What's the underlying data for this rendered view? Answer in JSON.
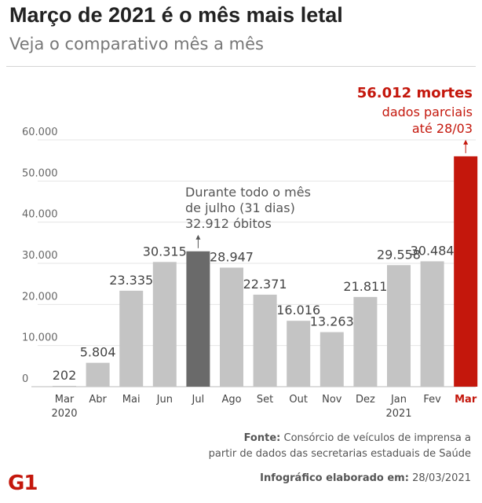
{
  "header": {
    "title": "Março de 2021 é o mês mais letal",
    "subtitle": "Veja o comparativo mês a mês"
  },
  "chart_data": {
    "type": "bar",
    "categories": [
      "Mar",
      "Abr",
      "Mai",
      "Jun",
      "Jul",
      "Ago",
      "Set",
      "Out",
      "Nov",
      "Dez",
      "Jan",
      "Fev",
      "Mar"
    ],
    "category_years": [
      "2020",
      "",
      "",
      "",
      "",
      "",
      "",
      "",
      "",
      "",
      "2021",
      "",
      ""
    ],
    "values": [
      202,
      5804,
      23335,
      30315,
      32912,
      28947,
      22371,
      16016,
      13263,
      21811,
      29558,
      30484,
      56012
    ],
    "value_labels": [
      "202",
      "5.804",
      "23.335",
      "30.315",
      "",
      "28.947",
      "22.371",
      "16.016",
      "13.263",
      "21.811",
      "29.558",
      "30.484",
      ""
    ],
    "y_ticks": [
      0,
      10000,
      20000,
      30000,
      40000,
      50000,
      60000
    ],
    "y_tick_labels": [
      "0",
      "10.000",
      "20.000",
      "30.000",
      "40.000",
      "50.000",
      "60.000"
    ],
    "ylim": [
      0,
      60000
    ],
    "grid": true,
    "colors": {
      "default": "#c4c4c4",
      "highlight_july": "#6a6a6a",
      "highlight_march": "#c4170c",
      "grid": "#e4e4e4"
    },
    "annotations": {
      "july": [
        "Durante todo o mês",
        "de julho (31 dias)",
        "32.912 óbitos"
      ],
      "march": [
        "56.012 mortes",
        "dados parciais",
        "até 28/03"
      ]
    }
  },
  "footer": {
    "source_label": "Fonte:",
    "source_line1": "Consórcio de veículos de imprensa a",
    "source_line2": "partir de dados das secretarias estaduais de Saúde",
    "logo": "G1",
    "credit_label": "Infográfico elaborado em:",
    "credit_date": "28/03/2021"
  }
}
